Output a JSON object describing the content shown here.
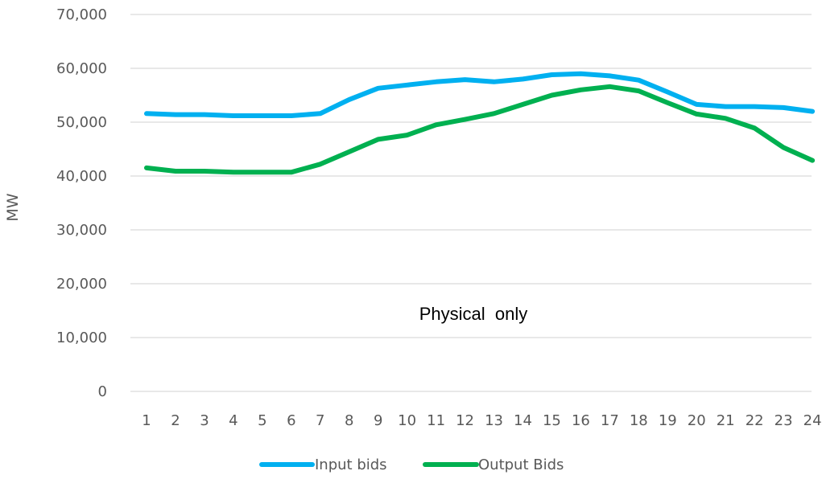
{
  "chart_data": {
    "type": "line",
    "title": "",
    "xlabel": "",
    "ylabel": "MW",
    "annotation": "Physical  only",
    "categories": [
      "1",
      "2",
      "3",
      "4",
      "5",
      "6",
      "7",
      "8",
      "9",
      "10",
      "11",
      "12",
      "13",
      "14",
      "15",
      "16",
      "17",
      "18",
      "19",
      "20",
      "21",
      "22",
      "23",
      "24"
    ],
    "ylim": [
      0,
      70000
    ],
    "yticks": [
      0,
      10000,
      20000,
      30000,
      40000,
      50000,
      60000,
      70000
    ],
    "ytick_labels": [
      "0",
      "10,000",
      "20,000",
      "30,000",
      "40,000",
      "50,000",
      "60,000",
      "70,000"
    ],
    "grid": true,
    "legend_position": "bottom",
    "series": [
      {
        "name": "Input bids",
        "color": "#00b0f0",
        "values": [
          51600,
          51400,
          51400,
          51200,
          51200,
          51200,
          51600,
          54200,
          56300,
          56900,
          57500,
          57900,
          57500,
          58000,
          58800,
          59000,
          58600,
          57800,
          55600,
          53300,
          52900,
          52900,
          52700,
          52000
        ]
      },
      {
        "name": "Output Bids",
        "color": "#00b050",
        "values": [
          41500,
          40900,
          40900,
          40700,
          40700,
          40700,
          42200,
          44500,
          46800,
          47600,
          49500,
          50500,
          51600,
          53300,
          55000,
          56000,
          56600,
          55800,
          53600,
          51500,
          50700,
          48900,
          45300,
          42900
        ]
      }
    ]
  }
}
